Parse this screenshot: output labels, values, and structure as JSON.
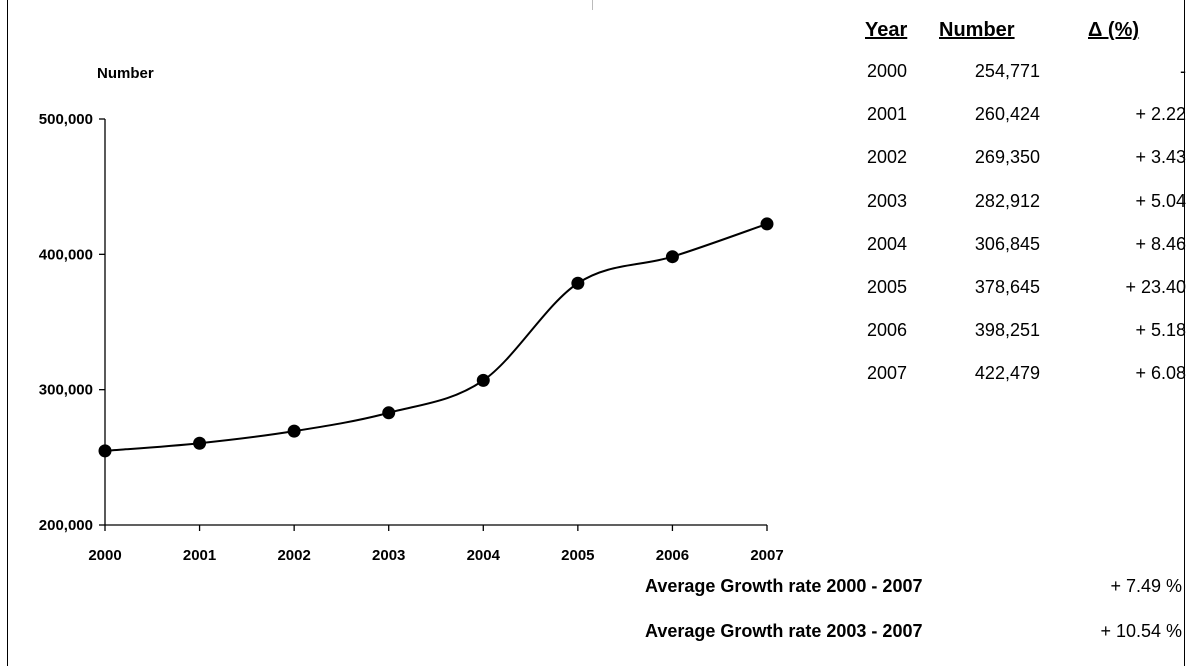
{
  "chart_data": {
    "type": "line",
    "ylabel": "Number",
    "x": [
      "2000",
      "2001",
      "2002",
      "2003",
      "2004",
      "2005",
      "2006",
      "2007"
    ],
    "values": [
      254771,
      260424,
      269350,
      282912,
      306845,
      378645,
      398251,
      422479
    ],
    "ylim": [
      200000,
      500000
    ],
    "yticks": [
      200000,
      300000,
      400000,
      500000
    ],
    "ytick_labels": [
      "200,000",
      "300,000",
      "400,000",
      "500,000"
    ],
    "grid": false,
    "legend": "none",
    "line_color": "#000000",
    "marker_color": "#000000"
  },
  "table": {
    "headers": {
      "year": "Year",
      "number": "Number",
      "delta": "Δ (%)"
    },
    "rows": [
      {
        "year": "2000",
        "number": "254,771",
        "delta": "-"
      },
      {
        "year": "2001",
        "number": "260,424",
        "delta": "+ 2.22"
      },
      {
        "year": "2002",
        "number": "269,350",
        "delta": "+ 3.43"
      },
      {
        "year": "2003",
        "number": "282,912",
        "delta": "+ 5.04"
      },
      {
        "year": "2004",
        "number": "306,845",
        "delta": "+ 8.46"
      },
      {
        "year": "2005",
        "number": "378,645",
        "delta": "+ 23.40"
      },
      {
        "year": "2006",
        "number": "398,251",
        "delta": "+ 5.18"
      },
      {
        "year": "2007",
        "number": "422,479",
        "delta": "+ 6.08"
      }
    ]
  },
  "averages": [
    {
      "label": "Average Growth rate 2000 - 2007",
      "value": "+ 7.49 %"
    },
    {
      "label": "Average Growth rate 2003 - 2007",
      "value": "+ 10.54 %"
    }
  ]
}
